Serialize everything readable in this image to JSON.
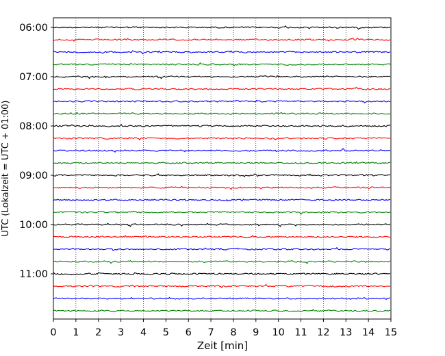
{
  "chart_data": {
    "type": "line",
    "chart_kind": "helicorder",
    "title": "",
    "xlabel": "Zeit  [min]",
    "ylabel": "UTC (Lokalzeit = UTC + 01:00)",
    "xlim": [
      0,
      15
    ],
    "x_ticks": [
      "0",
      "1",
      "2",
      "3",
      "4",
      "5",
      "6",
      "7",
      "8",
      "9",
      "10",
      "11",
      "12",
      "13",
      "14",
      "15"
    ],
    "y_tick_labels": [
      "06:00",
      "07:00",
      "08:00",
      "09:00",
      "10:00",
      "11:00"
    ],
    "trace_interval_min": 15,
    "trace_count": 24,
    "trace_start_times": [
      "06:00",
      "06:15",
      "06:30",
      "06:45",
      "07:00",
      "07:15",
      "07:30",
      "07:45",
      "08:00",
      "08:15",
      "08:30",
      "08:45",
      "09:00",
      "09:15",
      "09:30",
      "09:45",
      "10:00",
      "10:15",
      "10:30",
      "10:45",
      "11:00",
      "11:15",
      "11:30",
      "11:45"
    ],
    "series_colors": [
      "#000000",
      "#ff0000",
      "#0000ff",
      "#008000"
    ],
    "grid": {
      "x": true,
      "style": "dotted"
    },
    "legend": "none"
  }
}
